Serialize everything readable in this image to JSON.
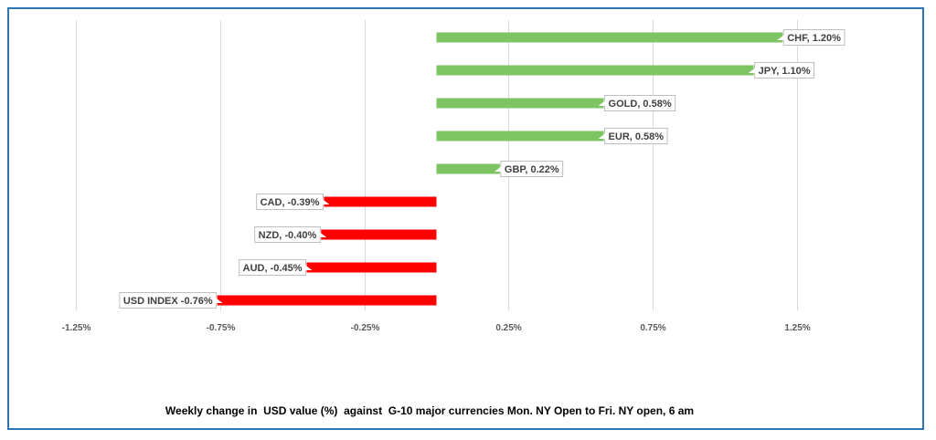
{
  "chart_data": {
    "type": "bar",
    "orientation": "horizontal",
    "title": "",
    "caption": "Weekly change in  USD value (%)  against  G-10 major currencies Mon. NY Open to Fri. NY open, 6 am",
    "categories": [
      "CHF",
      "JPY",
      "GOLD",
      "EUR",
      "GBP",
      "CAD",
      "NZD",
      "AUD",
      "USD INDEX"
    ],
    "values": [
      1.2,
      1.1,
      0.58,
      0.58,
      0.22,
      -0.39,
      -0.4,
      -0.45,
      -0.76
    ],
    "data_labels": [
      "CHF, 1.20%",
      "JPY, 1.10%",
      "GOLD, 0.58%",
      "EUR, 0.58%",
      "GBP, 0.22%",
      "CAD, -0.39%",
      "NZD, -0.40%",
      "AUD, -0.45%",
      "USD INDEX -0.76%"
    ],
    "xticks": [
      -1.25,
      -0.75,
      -0.25,
      0.25,
      0.75,
      1.25
    ],
    "xtick_labels": [
      "-1.25%",
      "-0.75%",
      "-0.25%",
      "0.25%",
      "0.75%",
      "1.25%"
    ],
    "xlim": [
      -1.25,
      1.25
    ],
    "grid": true,
    "colors": {
      "positive": "#7dc563",
      "negative": "#ff0000",
      "frame": "#2e75b6",
      "grid": "#d9d9d9"
    }
  }
}
